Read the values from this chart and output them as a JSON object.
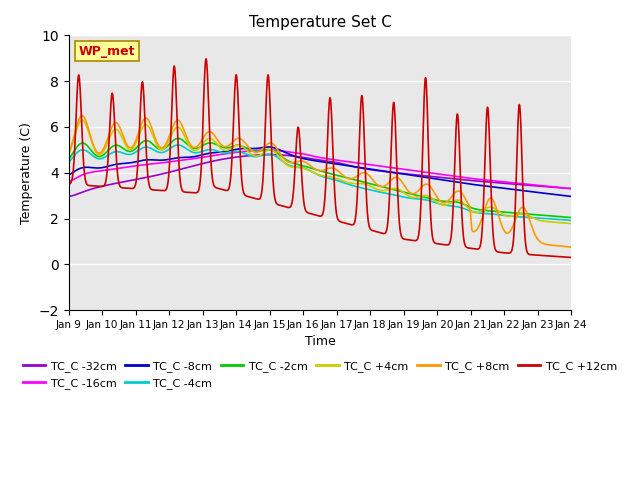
{
  "title": "Temperature Set C",
  "xlabel": "Time",
  "ylabel": "Temperature (C)",
  "ylim": [
    -2,
    10
  ],
  "xlim": [
    0,
    15
  ],
  "x_tick_labels": [
    "Jan 9",
    "Jan 10",
    "Jan 11",
    "Jan 12",
    "Jan 13",
    "Jan 14",
    "Jan 15",
    "Jan 16",
    "Jan 17",
    "Jan 18",
    "Jan 19",
    "Jan 20",
    "Jan 21",
    "Jan 22",
    "Jan 23",
    "Jan 24"
  ],
  "annotation_text": "WP_met",
  "annotation_color": "#cc0000",
  "annotation_bg": "#ffff99",
  "annotation_border": "#aa8800",
  "series_colors": {
    "TC_C -32cm": "#9900cc",
    "TC_C -16cm": "#ff00ff",
    "TC_C -8cm": "#0000cc",
    "TC_C -4cm": "#00cccc",
    "TC_C -2cm": "#00cc00",
    "TC_C +4cm": "#cccc00",
    "TC_C +8cm": "#ff9900",
    "TC_C +12cm": "#cc0000"
  },
  "legend_order": [
    "TC_C -32cm",
    "TC_C -16cm",
    "TC_C -8cm",
    "TC_C -4cm",
    "TC_C -2cm",
    "TC_C +4cm",
    "TC_C +8cm",
    "TC_C +12cm"
  ],
  "bg_color": "#e8e8e8",
  "grid_color": "#ffffff",
  "n_points": 1500,
  "figsize": [
    6.4,
    4.8
  ],
  "dpi": 100
}
